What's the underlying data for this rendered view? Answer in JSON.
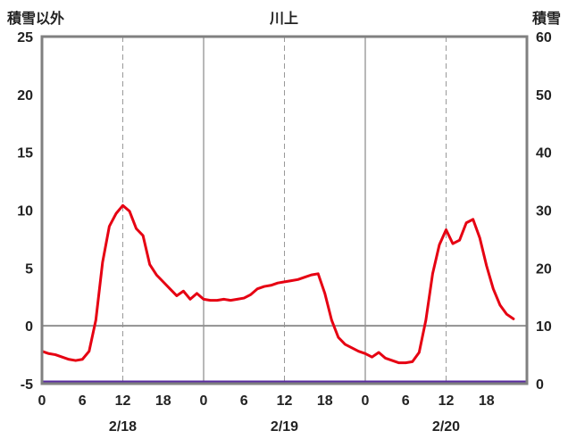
{
  "header": {
    "left_axis_title": "積雪以外",
    "title": "川上",
    "right_axis_title": "積雪"
  },
  "colors": {
    "temperature_line": "#e60012",
    "snow_line": "#5a2ca0",
    "frame": "#808080",
    "grid": "#999999",
    "zero_line": "#909090",
    "text": "#222222",
    "background": "#ffffff"
  },
  "chart_data": {
    "type": "line",
    "title": "川上",
    "left_axis": {
      "label": "積雪以外",
      "min": -5,
      "max": 25,
      "ticks": [
        25,
        20,
        15,
        10,
        5,
        0,
        -5
      ]
    },
    "right_axis": {
      "label": "積雪",
      "min": 0,
      "max": 60,
      "ticks": [
        60,
        50,
        40,
        30,
        20,
        10,
        0
      ]
    },
    "x_axis": {
      "min_hour": 0,
      "max_hour": 72,
      "hour_ticks": [
        0,
        6,
        12,
        18,
        24,
        30,
        36,
        42,
        48,
        54,
        60,
        66
      ],
      "hour_tick_labels": [
        "0",
        "6",
        "12",
        "18",
        "0",
        "6",
        "12",
        "18",
        "0",
        "6",
        "12",
        "18"
      ],
      "date_labels": [
        {
          "label": "2/18",
          "hour": 12
        },
        {
          "label": "2/19",
          "hour": 36
        },
        {
          "label": "2/20",
          "hour": 60
        }
      ],
      "solid_gridline_hours": [
        24,
        48
      ],
      "dashed_gridline_hours": [
        12,
        36,
        60
      ]
    },
    "grid": "vertical-only, horizontal zero line",
    "legend_position": "none",
    "zero_line_value": 0,
    "series": [
      {
        "name": "積雪以外",
        "data_name": "temperature-line",
        "axis": "left",
        "color": "#e60012",
        "x_hours": [
          0,
          1,
          2,
          3,
          4,
          5,
          6,
          7,
          8,
          9,
          10,
          11,
          12,
          13,
          14,
          15,
          16,
          17,
          18,
          19,
          20,
          21,
          22,
          23,
          24,
          25,
          26,
          27,
          28,
          29,
          30,
          31,
          32,
          33,
          34,
          35,
          36,
          37,
          38,
          39,
          40,
          41,
          42,
          43,
          44,
          45,
          46,
          47,
          48,
          49,
          50,
          51,
          52,
          53,
          54,
          55,
          56,
          57,
          58,
          59,
          60,
          61,
          62,
          63,
          64,
          65,
          66,
          67,
          68,
          69,
          70
        ],
        "values": [
          -2.2,
          -2.4,
          -2.5,
          -2.7,
          -2.9,
          -3.0,
          -2.9,
          -2.2,
          0.5,
          5.5,
          8.6,
          9.7,
          10.4,
          9.9,
          8.4,
          7.8,
          5.3,
          4.4,
          3.8,
          3.2,
          2.6,
          3.0,
          2.3,
          2.8,
          2.3,
          2.2,
          2.2,
          2.3,
          2.2,
          2.3,
          2.4,
          2.7,
          3.2,
          3.4,
          3.5,
          3.7,
          3.8,
          3.9,
          4.0,
          4.2,
          4.4,
          4.5,
          2.8,
          0.5,
          -1.0,
          -1.6,
          -1.9,
          -2.2,
          -2.4,
          -2.7,
          -2.3,
          -2.8,
          -3.0,
          -3.2,
          -3.2,
          -3.1,
          -2.3,
          0.5,
          4.5,
          7.0,
          8.3,
          7.1,
          7.4,
          8.9,
          9.2,
          7.6,
          5.2,
          3.2,
          1.8,
          1.0,
          0.6
        ]
      },
      {
        "name": "積雪",
        "data_name": "snow-depth-line",
        "axis": "right",
        "color": "#5a2ca0",
        "x_hours": [
          0,
          72
        ],
        "values": [
          0,
          0
        ]
      }
    ]
  }
}
